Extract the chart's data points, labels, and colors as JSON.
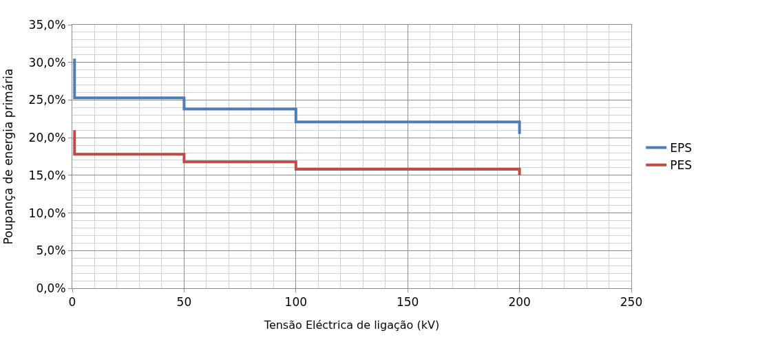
{
  "chart_data": {
    "type": "line",
    "xlabel": "Tensão Eléctrica de ligação (kV)",
    "ylabel": "Poupança de energia primária",
    "x": [
      1,
      1,
      50,
      50,
      100,
      100,
      200,
      200
    ],
    "series": [
      {
        "name": "EPS",
        "color": "#4a7ebb",
        "values": [
          30.5,
          25.3,
          25.3,
          23.8,
          23.8,
          22.1,
          22.1,
          20.5
        ]
      },
      {
        "name": "PES",
        "color": "#be4b48",
        "values": [
          21.0,
          17.8,
          17.8,
          16.8,
          16.8,
          15.8,
          15.8,
          15.0
        ]
      }
    ],
    "xlim": [
      0,
      250
    ],
    "xticks": [
      0,
      50,
      100,
      150,
      200,
      250
    ],
    "ylim": [
      0,
      35
    ],
    "yticks": [
      {
        "value": 0,
        "label": "0,0%"
      },
      {
        "value": 5,
        "label": "5,0%"
      },
      {
        "value": 10,
        "label": "10,0%"
      },
      {
        "value": 15,
        "label": "15,0%"
      },
      {
        "value": 20,
        "label": "20,0%"
      },
      {
        "value": 25,
        "label": "25,0%"
      },
      {
        "value": 30,
        "label": "30,0%"
      },
      {
        "value": 35,
        "label": "35,0%"
      }
    ],
    "grid": true,
    "legend": "right",
    "marker": "none",
    "line_style": "solid"
  }
}
